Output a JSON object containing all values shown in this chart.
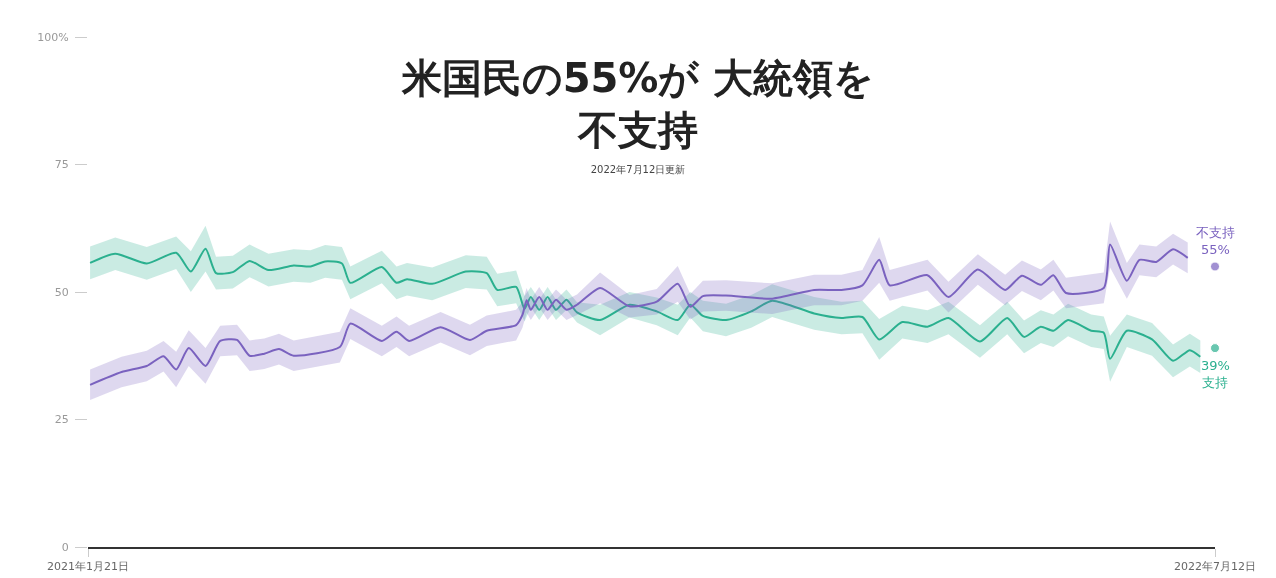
{
  "chart_data": {
    "type": "line",
    "title": "米国民の55%が 大統領を不支持",
    "subtitle": "2022年7月12日更新",
    "xlim": [
      "2021-01-21",
      "2022-07-12"
    ],
    "xticks": [
      {
        "value": "2021-01-21",
        "label": "2021年1月21日"
      },
      {
        "value": "2022-07-12",
        "label": "2022年7月12日"
      }
    ],
    "ylim": [
      0,
      100
    ],
    "yticks": [
      0,
      25,
      50,
      75,
      {
        "value": 100,
        "label": "100%"
      }
    ],
    "grid": false,
    "legend": false,
    "annotations": [
      {
        "text": "55%",
        "x": "2022-07-12",
        "y": 55
      },
      {
        "text": "39%",
        "x": "2022-07-12",
        "y": 39
      }
    ],
    "series": [
      {
        "name": "支持",
        "color": "#2bb08f",
        "x": [
          "2021-01-22",
          "2021-02-03",
          "2021-02-18",
          "2021-03-04",
          "2021-03-11",
          "2021-03-18",
          "2021-03-23",
          "2021-03-31",
          "2021-04-08",
          "2021-04-17",
          "2021-04-29",
          "2021-05-07",
          "2021-05-14",
          "2021-05-22",
          "2021-05-26",
          "2021-06-10",
          "2021-06-17",
          "2021-06-22",
          "2021-07-04",
          "2021-07-20",
          "2021-07-30",
          "2021-08-04",
          "2021-08-13",
          "2021-08-17",
          "2021-08-20",
          "2021-08-24",
          "2021-08-28",
          "2021-09-01",
          "2021-09-06",
          "2021-09-11",
          "2021-09-22",
          "2021-10-06",
          "2021-10-19",
          "2021-10-29",
          "2021-11-04",
          "2021-11-10",
          "2021-11-21",
          "2021-12-03",
          "2021-12-13",
          "2022-01-02",
          "2022-01-15",
          "2022-01-25",
          "2022-02-02",
          "2022-02-13",
          "2022-02-25",
          "2022-03-07",
          "2022-03-22",
          "2022-04-04",
          "2022-04-12",
          "2022-04-20",
          "2022-04-26",
          "2022-05-03",
          "2022-05-14",
          "2022-05-20",
          "2022-05-23",
          "2022-05-31",
          "2022-06-12",
          "2022-06-22",
          "2022-06-30",
          "2022-07-05",
          "2022-07-08",
          "2022-07-12"
        ],
        "values": [
          55.7,
          57.5,
          55.6,
          57.7,
          54.0,
          58.5,
          53.7,
          53.9,
          56.1,
          54.3,
          55.2,
          55.0,
          56.0,
          55.6,
          51.8,
          54.9,
          51.8,
          52.5,
          51.6,
          54.0,
          53.7,
          50.4,
          51.0,
          46.7,
          49.0,
          46.5,
          49.0,
          46.5,
          48.5,
          46.0,
          44.5,
          47.5,
          46.2,
          44.5,
          47.5,
          45.3,
          44.5,
          46.2,
          48.3,
          45.8,
          44.9,
          45.1,
          40.7,
          44.1,
          43.2,
          44.9,
          40.3,
          44.9,
          41.2,
          43.2,
          42.4,
          44.5,
          42.4,
          42.0,
          36.9,
          42.4,
          40.7,
          36.5,
          38.6,
          37.3,
          null,
          39
        ],
        "lower": [
          52.5,
          54.3,
          52.4,
          54.5,
          50.0,
          54.0,
          50.5,
          50.7,
          52.9,
          51.1,
          52.0,
          51.8,
          52.8,
          52.4,
          48.6,
          51.7,
          48.6,
          49.3,
          48.4,
          50.8,
          50.5,
          47.2,
          47.8,
          44.2,
          47.0,
          44.5,
          47.0,
          44.5,
          46.5,
          44.0,
          41.5,
          45.0,
          43.5,
          41.5,
          45.0,
          42.3,
          41.3,
          43.0,
          45.1,
          42.6,
          41.7,
          41.9,
          36.7,
          40.9,
          40.0,
          41.7,
          37.1,
          41.7,
          38.0,
          40.0,
          39.2,
          41.3,
          39.2,
          38.8,
          32.4,
          39.2,
          37.5,
          33.3,
          35.4,
          34.1,
          null,
          null
        ],
        "upper": [
          58.9,
          60.7,
          58.8,
          60.9,
          58.0,
          63.0,
          56.9,
          57.1,
          59.3,
          57.5,
          58.4,
          58.2,
          59.2,
          58.8,
          55.0,
          58.1,
          55.0,
          55.7,
          54.8,
          57.2,
          56.9,
          53.6,
          54.2,
          49.2,
          51.0,
          48.5,
          51.0,
          48.5,
          50.5,
          48.0,
          47.5,
          50.0,
          48.9,
          47.5,
          50.0,
          48.3,
          47.7,
          49.4,
          51.5,
          49.0,
          48.1,
          48.3,
          44.7,
          47.3,
          46.4,
          48.1,
          43.5,
          48.1,
          44.4,
          46.4,
          45.6,
          47.7,
          45.6,
          45.2,
          41.4,
          45.6,
          43.9,
          39.7,
          41.8,
          40.5,
          null,
          null
        ]
      },
      {
        "name": "不支持",
        "color": "#7a62bf",
        "x": [
          "2021-01-22",
          "2021-02-06",
          "2021-02-18",
          "2021-02-26",
          "2021-03-04",
          "2021-03-10",
          "2021-03-18",
          "2021-03-25",
          "2021-04-02",
          "2021-04-08",
          "2021-04-15",
          "2021-04-22",
          "2021-04-29",
          "2021-05-21",
          "2021-05-26",
          "2021-06-10",
          "2021-06-17",
          "2021-06-23",
          "2021-07-08",
          "2021-07-22",
          "2021-07-30",
          "2021-08-13",
          "2021-08-16",
          "2021-08-18",
          "2021-08-20",
          "2021-08-24",
          "2021-08-28",
          "2021-09-01",
          "2021-09-06",
          "2021-09-11",
          "2021-09-22",
          "2021-10-06",
          "2021-10-19",
          "2021-10-29",
          "2021-11-04",
          "2021-11-10",
          "2021-11-21",
          "2021-12-13",
          "2022-01-02",
          "2022-01-15",
          "2022-01-25",
          "2022-02-02",
          "2022-02-07",
          "2022-02-25",
          "2022-03-07",
          "2022-03-21",
          "2022-04-03",
          "2022-04-11",
          "2022-04-20",
          "2022-04-26",
          "2022-05-02",
          "2022-05-20",
          "2022-05-23",
          "2022-05-31",
          "2022-06-06",
          "2022-06-14",
          "2022-06-22",
          "2022-06-29",
          "2022-07-08",
          "2022-07-12"
        ],
        "values": [
          31.8,
          34.3,
          35.5,
          37.4,
          34.8,
          39.0,
          35.5,
          40.4,
          40.6,
          37.5,
          37.9,
          38.8,
          37.5,
          39.2,
          43.8,
          40.4,
          42.2,
          40.4,
          43.1,
          40.6,
          42.4,
          43.5,
          45.5,
          48.4,
          46.5,
          49.0,
          46.5,
          48.5,
          46.5,
          47.5,
          50.8,
          47.2,
          48.1,
          51.6,
          47.1,
          49.2,
          49.3,
          48.7,
          50.4,
          50.4,
          51.3,
          56.3,
          51.3,
          53.3,
          49.0,
          54.4,
          50.4,
          53.2,
          51.4,
          53.3,
          49.8,
          50.8,
          59.3,
          52.2,
          56.3,
          55.9,
          58.4,
          56.7,
          null,
          55
        ],
        "lower": [
          28.8,
          31.3,
          32.5,
          34.4,
          31.3,
          35.5,
          32.0,
          37.4,
          37.6,
          34.5,
          34.9,
          35.8,
          34.5,
          36.2,
          40.8,
          37.4,
          39.2,
          37.4,
          40.1,
          37.6,
          39.4,
          40.5,
          43.0,
          46.0,
          44.5,
          47.0,
          44.5,
          46.5,
          44.5,
          45.5,
          47.8,
          45.0,
          45.6,
          48.1,
          44.6,
          46.2,
          46.3,
          45.7,
          47.4,
          47.4,
          48.3,
          51.8,
          48.3,
          50.3,
          46.0,
          51.4,
          47.4,
          50.2,
          48.4,
          50.3,
          46.8,
          47.8,
          54.8,
          48.7,
          53.3,
          52.9,
          55.4,
          53.7,
          null,
          null
        ],
        "upper": [
          34.8,
          37.3,
          38.5,
          40.4,
          38.3,
          42.5,
          39.0,
          43.4,
          43.6,
          40.5,
          40.9,
          41.8,
          40.5,
          42.2,
          46.8,
          43.4,
          45.2,
          43.4,
          46.1,
          43.6,
          45.4,
          46.5,
          48.0,
          50.8,
          48.5,
          51.0,
          48.5,
          50.5,
          48.5,
          49.5,
          53.8,
          49.4,
          50.6,
          55.1,
          49.6,
          52.2,
          52.3,
          51.7,
          53.4,
          53.4,
          54.3,
          60.8,
          54.3,
          56.3,
          52.0,
          57.4,
          53.4,
          56.2,
          54.4,
          56.3,
          52.8,
          53.8,
          63.8,
          55.7,
          59.3,
          58.9,
          61.4,
          59.7,
          null,
          null
        ]
      }
    ]
  }
}
